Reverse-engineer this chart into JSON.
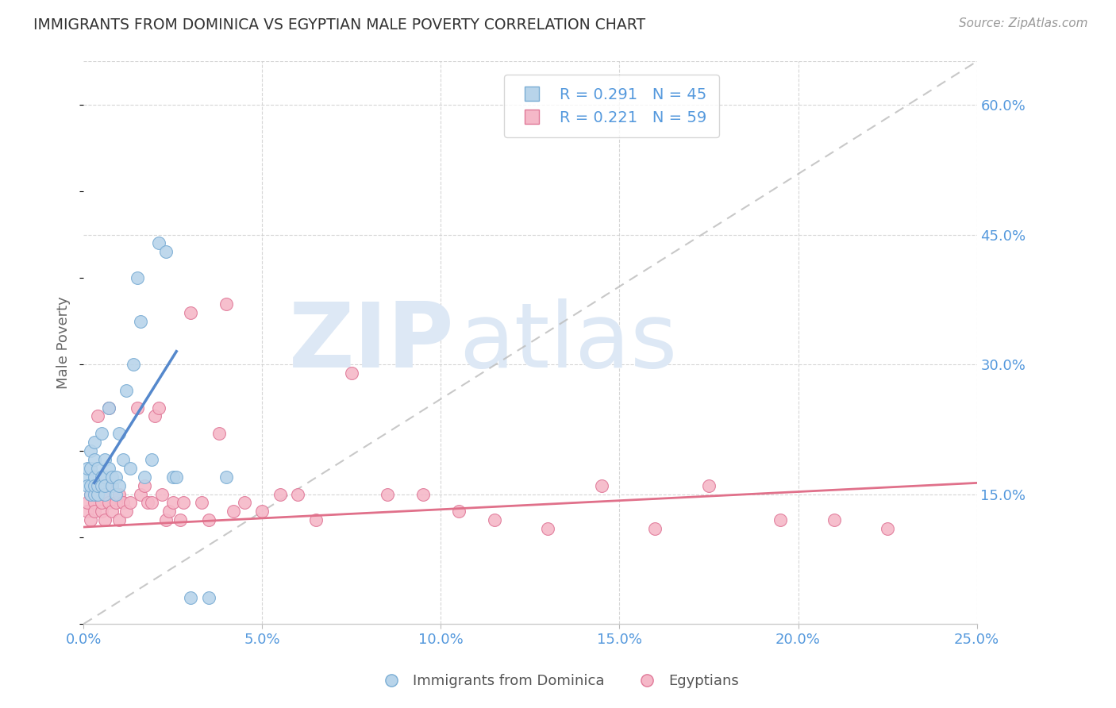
{
  "title": "IMMIGRANTS FROM DOMINICA VS EGYPTIAN MALE POVERTY CORRELATION CHART",
  "source": "Source: ZipAtlas.com",
  "ylabel": "Male Poverty",
  "xlim": [
    0.0,
    0.25
  ],
  "ylim": [
    0.0,
    0.65
  ],
  "xticks": [
    0.0,
    0.05,
    0.1,
    0.15,
    0.2,
    0.25
  ],
  "yticks": [
    0.15,
    0.3,
    0.45,
    0.6
  ],
  "ytick_labels": [
    "15.0%",
    "30.0%",
    "45.0%",
    "60.0%"
  ],
  "xtick_labels": [
    "0.0%",
    "5.0%",
    "10.0%",
    "15.0%",
    "20.0%",
    "25.0%"
  ],
  "series1_name": "Immigrants from Dominica",
  "series1_color": "#b8d4ea",
  "series1_edge": "#7aadd4",
  "series1_line_color": "#5588cc",
  "series2_name": "Egyptians",
  "series2_color": "#f5b8c8",
  "series2_edge": "#e07898",
  "series2_line_color": "#e0708a",
  "background_color": "#ffffff",
  "grid_color": "#cccccc",
  "title_color": "#333333",
  "axis_label_color": "#666666",
  "tick_label_color": "#5599dd",
  "watermark_color": "#dde8f5",
  "blue_line_x": [
    0.003,
    0.026
  ],
  "blue_line_y": [
    0.163,
    0.315
  ],
  "pink_line_x": [
    0.0,
    0.25
  ],
  "pink_line_y": [
    0.112,
    0.163
  ],
  "diag_line_x": [
    0.0,
    0.25
  ],
  "diag_line_y": [
    0.0,
    0.65
  ],
  "series1_x": [
    0.001,
    0.001,
    0.001,
    0.002,
    0.002,
    0.002,
    0.002,
    0.003,
    0.003,
    0.003,
    0.003,
    0.003,
    0.004,
    0.004,
    0.004,
    0.005,
    0.005,
    0.005,
    0.006,
    0.006,
    0.006,
    0.006,
    0.007,
    0.007,
    0.008,
    0.008,
    0.009,
    0.009,
    0.01,
    0.01,
    0.011,
    0.012,
    0.013,
    0.014,
    0.015,
    0.016,
    0.017,
    0.019,
    0.021,
    0.023,
    0.025,
    0.026,
    0.03,
    0.035,
    0.04
  ],
  "series1_y": [
    0.17,
    0.16,
    0.18,
    0.15,
    0.16,
    0.18,
    0.2,
    0.15,
    0.17,
    0.19,
    0.16,
    0.21,
    0.15,
    0.16,
    0.18,
    0.17,
    0.22,
    0.16,
    0.17,
    0.15,
    0.19,
    0.16,
    0.25,
    0.18,
    0.16,
    0.17,
    0.15,
    0.17,
    0.22,
    0.16,
    0.19,
    0.27,
    0.18,
    0.3,
    0.4,
    0.35,
    0.17,
    0.19,
    0.44,
    0.43,
    0.17,
    0.17,
    0.03,
    0.03,
    0.17
  ],
  "series2_x": [
    0.001,
    0.001,
    0.002,
    0.002,
    0.003,
    0.003,
    0.003,
    0.004,
    0.004,
    0.005,
    0.005,
    0.006,
    0.006,
    0.007,
    0.007,
    0.008,
    0.008,
    0.009,
    0.01,
    0.01,
    0.011,
    0.012,
    0.013,
    0.015,
    0.016,
    0.017,
    0.018,
    0.019,
    0.02,
    0.021,
    0.022,
    0.023,
    0.024,
    0.025,
    0.027,
    0.028,
    0.03,
    0.033,
    0.035,
    0.038,
    0.04,
    0.042,
    0.045,
    0.05,
    0.055,
    0.06,
    0.065,
    0.075,
    0.085,
    0.095,
    0.105,
    0.115,
    0.13,
    0.145,
    0.16,
    0.175,
    0.195,
    0.21,
    0.225
  ],
  "series2_y": [
    0.13,
    0.14,
    0.15,
    0.12,
    0.14,
    0.16,
    0.13,
    0.15,
    0.24,
    0.13,
    0.14,
    0.12,
    0.15,
    0.14,
    0.25,
    0.13,
    0.16,
    0.14,
    0.15,
    0.12,
    0.14,
    0.13,
    0.14,
    0.25,
    0.15,
    0.16,
    0.14,
    0.14,
    0.24,
    0.25,
    0.15,
    0.12,
    0.13,
    0.14,
    0.12,
    0.14,
    0.36,
    0.14,
    0.12,
    0.22,
    0.37,
    0.13,
    0.14,
    0.13,
    0.15,
    0.15,
    0.12,
    0.29,
    0.15,
    0.15,
    0.13,
    0.12,
    0.11,
    0.16,
    0.11,
    0.16,
    0.12,
    0.12,
    0.11
  ]
}
